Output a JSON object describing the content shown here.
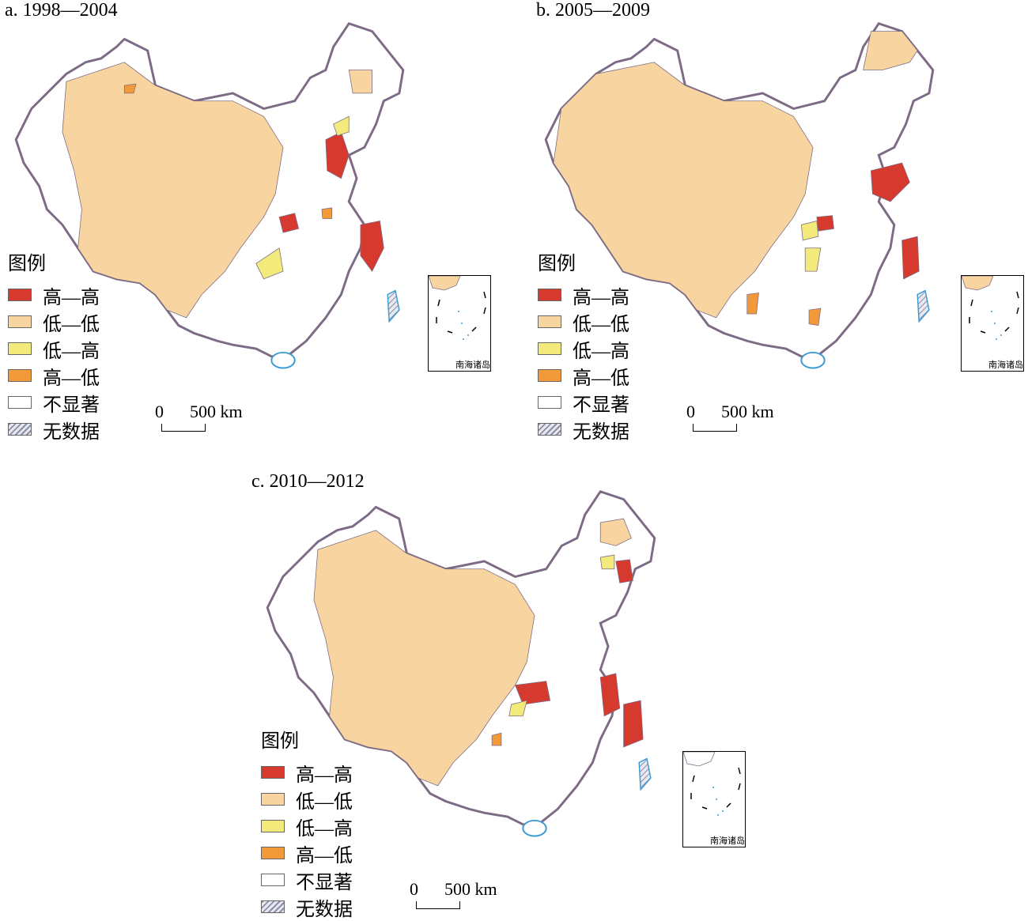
{
  "colors": {
    "high_high": "#d63a2e",
    "low_low": "#f8d5a0",
    "low_high": "#f2ea7a",
    "high_low": "#f29a3a",
    "not_significant": "#ffffff",
    "border": "#7d6b86",
    "coast": "#3d9ad1"
  },
  "legend": {
    "title": "图例",
    "items": [
      {
        "key": "high_high",
        "label": "高—高",
        "color": "#d63a2e"
      },
      {
        "key": "low_low",
        "label": "低—低",
        "color": "#f8d5a0"
      },
      {
        "key": "low_high",
        "label": "低—高",
        "color": "#f2ea7a"
      },
      {
        "key": "high_low",
        "label": "高—低",
        "color": "#f29a3a"
      },
      {
        "key": "not_significant",
        "label": "不显著",
        "color": "#ffffff"
      },
      {
        "key": "no_data",
        "label": "无数据",
        "color": "hatched"
      }
    ]
  },
  "scale": {
    "zero": "0",
    "distance": "500 km"
  },
  "inset_label": "南海诸岛",
  "panels": [
    {
      "title": "a. 1998—2004"
    },
    {
      "title": "b. 2005—2009"
    },
    {
      "title": "c. 2010—2012"
    }
  ]
}
